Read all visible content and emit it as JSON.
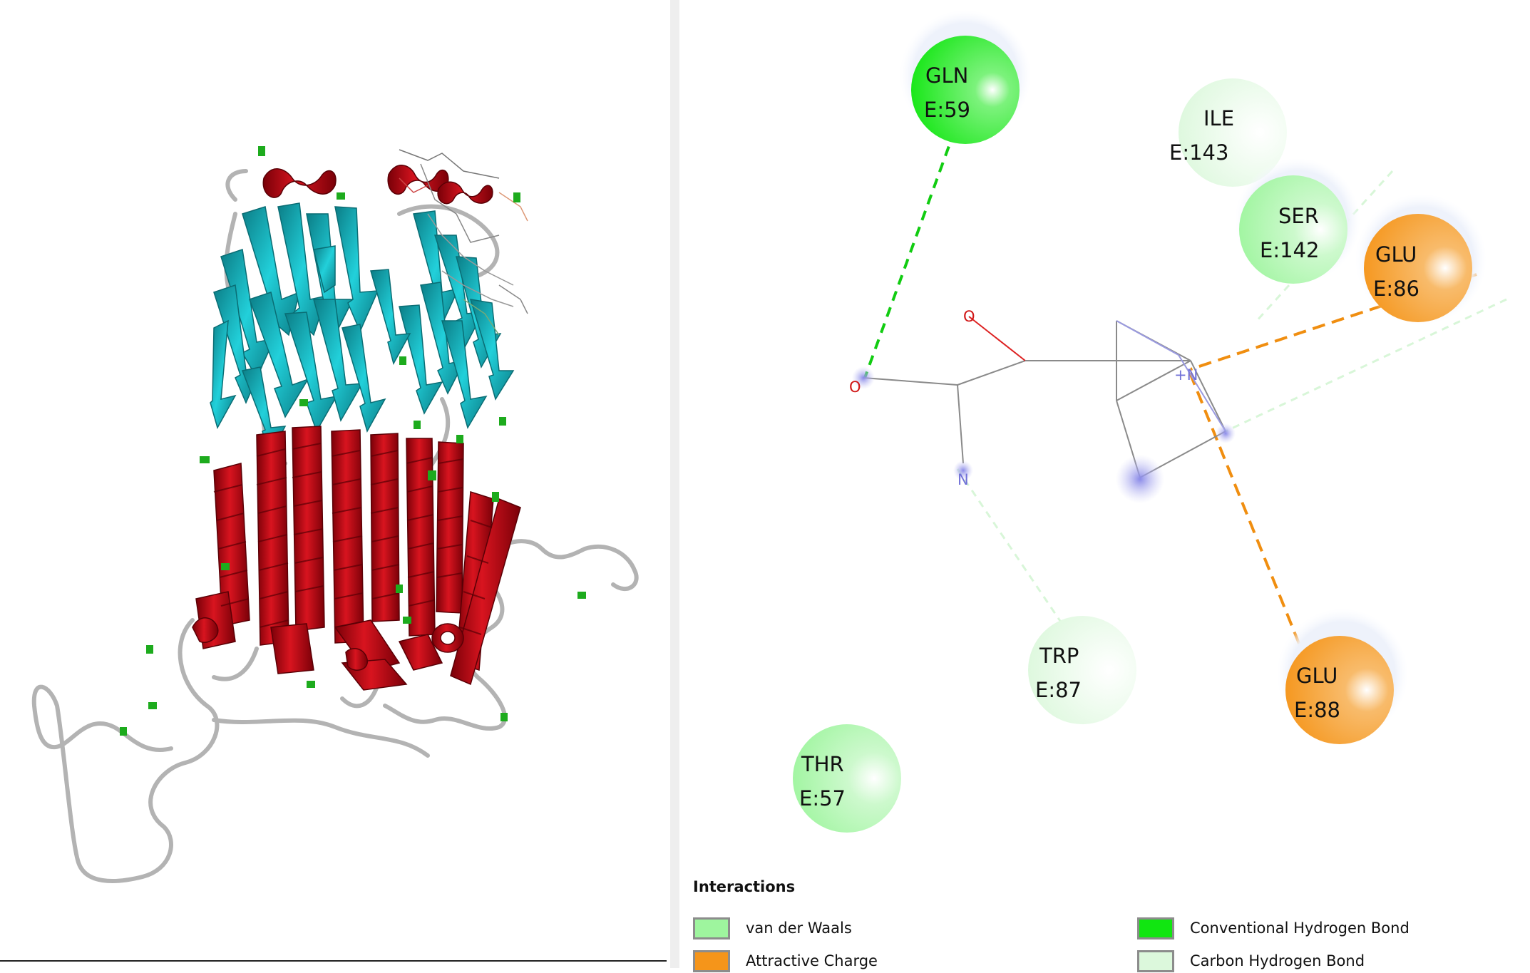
{
  "residues": [
    {
      "name": "GLN",
      "id": "E:59",
      "type": "conventional_hbond"
    },
    {
      "name": "ILE",
      "id": "E:143",
      "type": "carbon_hbond"
    },
    {
      "name": "SER",
      "id": "E:142",
      "type": "van_der_waals"
    },
    {
      "name": "GLU",
      "id": "E:86",
      "type": "attractive_charge"
    },
    {
      "name": "TRP",
      "id": "E:87",
      "type": "carbon_hbond"
    },
    {
      "name": "GLU",
      "id": "E:88",
      "type": "attractive_charge"
    },
    {
      "name": "THR",
      "id": "E:57",
      "type": "van_der_waals"
    }
  ],
  "ligand_atoms": {
    "o_top": "O",
    "o_left": "O",
    "n_bottom": "N",
    "n_charged": "+N"
  },
  "legend": {
    "title": "Interactions",
    "items": [
      {
        "label": "van der Waals",
        "color": "#9ef59e"
      },
      {
        "label": "Attractive Charge",
        "color": "#f5951a"
      },
      {
        "label": "Conventional Hydrogen Bond",
        "color": "#11e611"
      },
      {
        "label": "Carbon Hydrogen Bond",
        "color": "#dcf8dc"
      }
    ]
  },
  "colors": {
    "conventional_hbond": "#11e611",
    "van_der_waals": "#9ef59e",
    "carbon_hbond": "#dcf8dc",
    "attractive_charge": "#f5951a",
    "helix": "#c8101a",
    "sheet": "#12b9c2",
    "turn": "#1dab1d",
    "coil": "#a9a9a9"
  }
}
